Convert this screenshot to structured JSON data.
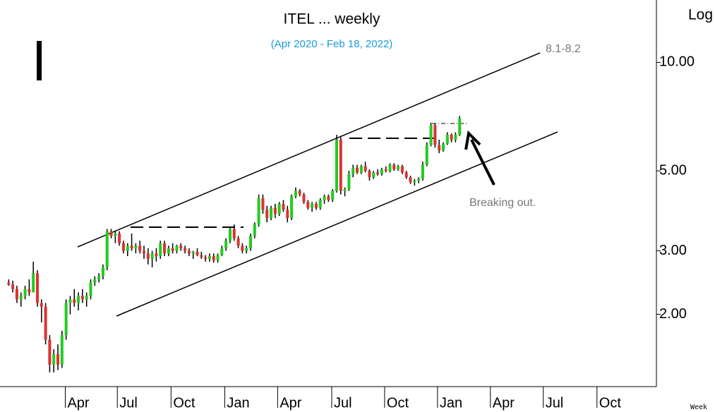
{
  "chart_data": {
    "type": "candlestick",
    "title": "ITEL ... weekly",
    "subtitle": "(Apr 2020 - Feb 18, 2022)",
    "scale_label": "Log",
    "period_label": "Week",
    "annotations": [
      "8.1-8.2",
      "Breaking out."
    ],
    "log_scale": true,
    "up_color": "#22cc22",
    "down_color": "#dd3333",
    "wick_color": "#000000",
    "ylim": [
      1.26,
      14.9
    ],
    "yticks": [
      {
        "value": 10,
        "label": "10.00"
      },
      {
        "value": 5,
        "label": "5.00"
      },
      {
        "value": 3,
        "label": "3.00"
      },
      {
        "value": 2,
        "label": "2.00"
      }
    ],
    "xlim": [
      -0.4,
      158
    ],
    "xticks": [
      {
        "value": 13.8,
        "label": "Apr"
      },
      {
        "value": 26.5,
        "label": "Jul"
      },
      {
        "value": 39.6,
        "label": "Oct"
      },
      {
        "value": 52.7,
        "label": "Jan"
      },
      {
        "value": 65.6,
        "label": "Apr"
      },
      {
        "value": 78.8,
        "label": "Jul"
      },
      {
        "value": 91.7,
        "label": "Oct"
      },
      {
        "value": 104.6,
        "label": "Jan"
      },
      {
        "value": 117.5,
        "label": "Apr"
      },
      {
        "value": 130.4,
        "label": "Jul"
      },
      {
        "value": 143.5,
        "label": "Oct"
      }
    ],
    "ohlc": [
      [
        2.45,
        2.5,
        2.4,
        2.42
      ],
      [
        2.42,
        2.48,
        2.3,
        2.35
      ],
      [
        2.35,
        2.4,
        2.15,
        2.2
      ],
      [
        2.2,
        2.3,
        2.1,
        2.25
      ],
      [
        2.25,
        2.4,
        2.2,
        2.35
      ],
      [
        2.35,
        2.5,
        2.25,
        2.3
      ],
      [
        2.3,
        2.8,
        2.3,
        2.6
      ],
      [
        2.6,
        2.65,
        2.1,
        2.15
      ],
      [
        2.15,
        2.2,
        1.9,
        2.1
      ],
      [
        2.1,
        2.15,
        1.65,
        1.7
      ],
      [
        1.7,
        1.75,
        1.38,
        1.45
      ],
      [
        1.45,
        1.6,
        1.38,
        1.55
      ],
      [
        1.55,
        1.65,
        1.4,
        1.45
      ],
      [
        1.45,
        1.8,
        1.42,
        1.75
      ],
      [
        1.75,
        2.2,
        1.7,
        2.15
      ],
      [
        2.15,
        2.25,
        2.0,
        2.2
      ],
      [
        2.2,
        2.35,
        2.1,
        2.15
      ],
      [
        2.15,
        2.3,
        2.05,
        2.25
      ],
      [
        2.25,
        2.35,
        2.15,
        2.2
      ],
      [
        2.2,
        2.3,
        2.1,
        2.25
      ],
      [
        2.25,
        2.5,
        2.2,
        2.45
      ],
      [
        2.45,
        2.55,
        2.4,
        2.5
      ],
      [
        2.5,
        2.6,
        2.45,
        2.55
      ],
      [
        2.55,
        2.75,
        2.5,
        2.7
      ],
      [
        2.7,
        3.45,
        2.65,
        3.4
      ],
      [
        3.4,
        3.45,
        3.25,
        3.3
      ],
      [
        3.3,
        3.4,
        3.15,
        3.35
      ],
      [
        3.35,
        3.4,
        3.1,
        3.15
      ],
      [
        3.15,
        3.2,
        2.95,
        3.0
      ],
      [
        3.0,
        3.15,
        2.9,
        3.1
      ],
      [
        3.1,
        3.35,
        3.0,
        3.05
      ],
      [
        3.05,
        3.15,
        2.95,
        3.1
      ],
      [
        3.1,
        3.2,
        2.95,
        3.0
      ],
      [
        3.0,
        3.1,
        2.85,
        2.95
      ],
      [
        2.95,
        3.05,
        2.75,
        2.85
      ],
      [
        2.85,
        3.0,
        2.7,
        2.95
      ],
      [
        2.95,
        3.05,
        2.8,
        2.9
      ],
      [
        2.9,
        3.2,
        2.85,
        3.15
      ],
      [
        3.15,
        3.2,
        2.9,
        2.95
      ],
      [
        2.95,
        3.1,
        2.9,
        3.05
      ],
      [
        3.05,
        3.15,
        2.95,
        3.0
      ],
      [
        3.0,
        3.12,
        2.95,
        3.1
      ],
      [
        3.1,
        3.15,
        3.0,
        3.05
      ],
      [
        3.05,
        3.1,
        2.95,
        3.0
      ],
      [
        3.0,
        3.05,
        2.9,
        2.95
      ],
      [
        2.95,
        3.0,
        2.85,
        2.98
      ],
      [
        2.98,
        3.05,
        2.9,
        2.92
      ],
      [
        2.92,
        2.98,
        2.85,
        2.88
      ],
      [
        2.88,
        2.92,
        2.8,
        2.85
      ],
      [
        2.85,
        2.95,
        2.8,
        2.9
      ],
      [
        2.9,
        2.95,
        2.78,
        2.82
      ],
      [
        2.82,
        2.95,
        2.78,
        2.92
      ],
      [
        2.92,
        3.1,
        2.9,
        3.05
      ],
      [
        3.05,
        3.25,
        3.0,
        3.2
      ],
      [
        3.2,
        3.5,
        3.15,
        3.45
      ],
      [
        3.45,
        3.55,
        3.2,
        3.25
      ],
      [
        3.25,
        3.3,
        3.05,
        3.1
      ],
      [
        3.1,
        3.15,
        2.95,
        3.0
      ],
      [
        3.0,
        3.1,
        2.95,
        3.05
      ],
      [
        3.05,
        3.35,
        3.0,
        3.3
      ],
      [
        3.3,
        3.6,
        3.25,
        3.55
      ],
      [
        3.55,
        4.3,
        3.5,
        4.2
      ],
      [
        4.2,
        4.3,
        3.8,
        3.9
      ],
      [
        3.9,
        4.0,
        3.6,
        3.7
      ],
      [
        3.7,
        4.0,
        3.65,
        3.95
      ],
      [
        3.95,
        4.05,
        3.7,
        3.8
      ],
      [
        3.8,
        4.1,
        3.75,
        4.05
      ],
      [
        4.05,
        4.15,
        3.85,
        3.9
      ],
      [
        3.9,
        4.0,
        3.6,
        3.7
      ],
      [
        3.7,
        4.3,
        3.65,
        4.25
      ],
      [
        4.25,
        4.5,
        4.2,
        4.4
      ],
      [
        4.4,
        4.45,
        4.25,
        4.3
      ],
      [
        4.3,
        4.35,
        4.05,
        4.1
      ],
      [
        4.1,
        4.15,
        3.9,
        3.95
      ],
      [
        3.95,
        4.1,
        3.85,
        4.05
      ],
      [
        4.05,
        4.1,
        3.9,
        3.95
      ],
      [
        3.95,
        4.2,
        3.9,
        4.15
      ],
      [
        4.15,
        4.3,
        4.05,
        4.25
      ],
      [
        4.25,
        4.3,
        4.1,
        4.15
      ],
      [
        4.15,
        4.45,
        4.1,
        4.4
      ],
      [
        4.4,
        6.3,
        4.35,
        6.1
      ],
      [
        6.1,
        6.2,
        4.3,
        4.4
      ],
      [
        4.4,
        4.5,
        4.25,
        4.45
      ],
      [
        4.45,
        5.0,
        4.4,
        4.9
      ],
      [
        4.9,
        5.2,
        4.8,
        5.1
      ],
      [
        5.1,
        5.2,
        4.9,
        4.95
      ],
      [
        4.95,
        5.2,
        4.9,
        5.15
      ],
      [
        5.15,
        5.3,
        4.95,
        5.0
      ],
      [
        5.0,
        5.05,
        4.7,
        4.8
      ],
      [
        4.8,
        5.0,
        4.75,
        4.95
      ],
      [
        4.95,
        5.05,
        4.85,
        4.9
      ],
      [
        4.9,
        5.1,
        4.85,
        5.05
      ],
      [
        5.05,
        5.15,
        4.95,
        5.0
      ],
      [
        5.0,
        5.25,
        4.95,
        5.2
      ],
      [
        5.2,
        5.25,
        5.0,
        5.05
      ],
      [
        5.05,
        5.2,
        5.0,
        5.15
      ],
      [
        5.15,
        5.2,
        4.9,
        4.95
      ],
      [
        4.95,
        5.0,
        4.75,
        4.8
      ],
      [
        4.8,
        4.85,
        4.6,
        4.65
      ],
      [
        4.65,
        4.75,
        4.55,
        4.7
      ],
      [
        4.7,
        4.8,
        4.62,
        4.75
      ],
      [
        4.75,
        5.3,
        4.7,
        5.2
      ],
      [
        5.2,
        6.0,
        5.15,
        5.9
      ],
      [
        5.9,
        6.8,
        5.85,
        6.7
      ],
      [
        6.7,
        6.75,
        5.8,
        5.9
      ],
      [
        5.9,
        6.1,
        5.6,
        5.7
      ],
      [
        5.7,
        6.0,
        5.65,
        5.95
      ],
      [
        5.95,
        6.4,
        5.9,
        6.3
      ],
      [
        6.3,
        6.35,
        6.0,
        6.1
      ],
      [
        6.1,
        6.4,
        6.0,
        6.3
      ],
      [
        6.3,
        7.1,
        6.25,
        7.0
      ]
    ]
  }
}
